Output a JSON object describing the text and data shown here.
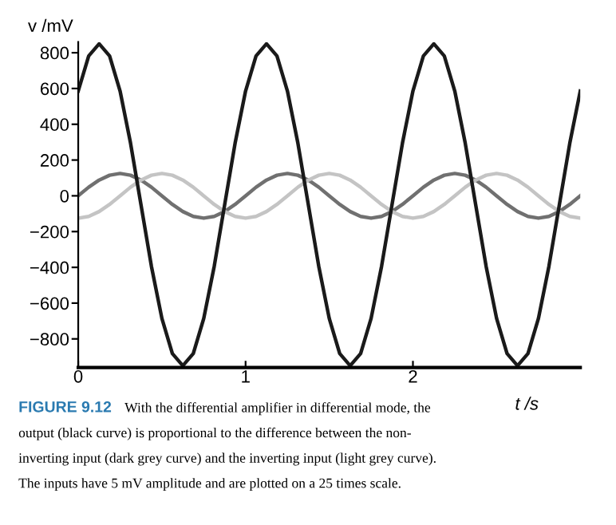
{
  "chart_data": {
    "type": "line",
    "xlabel": "t /s",
    "ylabel": "v /mV",
    "x": [
      0,
      0.0625,
      0.125,
      0.1875,
      0.25,
      0.3125,
      0.375,
      0.4375,
      0.5,
      0.5625,
      0.625,
      0.6875,
      0.75,
      0.8125,
      0.875,
      0.9375,
      1,
      1.0625,
      1.125,
      1.1875,
      1.25,
      1.3125,
      1.375,
      1.4375,
      1.5,
      1.5625,
      1.625,
      1.6875,
      1.75,
      1.8125,
      1.875,
      1.9375,
      2,
      2.0625,
      2.125,
      2.1875,
      2.25,
      2.3125,
      2.375,
      2.4375,
      2.5,
      2.5625,
      2.625,
      2.6875,
      2.75,
      2.8125,
      2.875,
      2.9375,
      3
    ],
    "series": [
      {
        "color": "#707070",
        "values": [
          0,
          48,
          88,
          115,
          125,
          115,
          88,
          48,
          0,
          -48,
          -88,
          -115,
          -125,
          -115,
          -88,
          -48,
          0,
          48,
          88,
          115,
          125,
          115,
          88,
          48,
          0,
          -48,
          -88,
          -115,
          -125,
          -115,
          -88,
          -48,
          0,
          48,
          88,
          115,
          125,
          115,
          88,
          48,
          0,
          -48,
          -88,
          -115,
          -125,
          -115,
          -88,
          -48,
          0
        ]
      },
      {
        "color": "#c4c4c4",
        "values": [
          -125,
          -115,
          -88,
          -48,
          0,
          48,
          88,
          115,
          125,
          115,
          88,
          48,
          0,
          -48,
          -88,
          -115,
          -125,
          -115,
          -88,
          -48,
          0,
          48,
          88,
          115,
          125,
          115,
          88,
          48,
          0,
          -48,
          -88,
          -115,
          -125,
          -115,
          -88,
          -48,
          0,
          48,
          88,
          115,
          125,
          115,
          88,
          48,
          0,
          -48,
          -88,
          -115,
          -125
        ]
      },
      {
        "color": "#1a1a1a",
        "values": [
          586,
          782,
          850,
          782,
          586,
          295,
          -50,
          -395,
          -686,
          -882,
          -950,
          -882,
          -686,
          -395,
          -50,
          295,
          586,
          782,
          850,
          782,
          586,
          295,
          -50,
          -395,
          -686,
          -882,
          -950,
          -882,
          -686,
          -395,
          -50,
          295,
          586,
          782,
          850,
          782,
          586,
          295,
          -50,
          -395,
          -686,
          -882,
          -950,
          -882,
          -686,
          -395,
          -50,
          295,
          586
        ]
      }
    ],
    "xlim": [
      0,
      3
    ],
    "ylim": [
      -960,
      860
    ],
    "xticks": [
      0,
      1,
      2
    ],
    "yticks": [
      {
        "value": -800,
        "label": "−800"
      },
      {
        "value": -600,
        "label": "−600"
      },
      {
        "value": -400,
        "label": "−400"
      },
      {
        "value": -200,
        "label": "−200"
      },
      0,
      200,
      400,
      600,
      800
    ],
    "grid": false,
    "legend": false,
    "marker": "none",
    "line_style": "solid",
    "annotations": [
      "FIGURE 9.12",
      "With the differential amplifier in differential mode, the\noutput (black curve) is proportional to the difference between the non-\ninverting input (dark grey curve) and the inverting input (light grey curve).\nThe inputs have 5 mV amplitude and are plotted on a 25 times scale."
    ]
  }
}
